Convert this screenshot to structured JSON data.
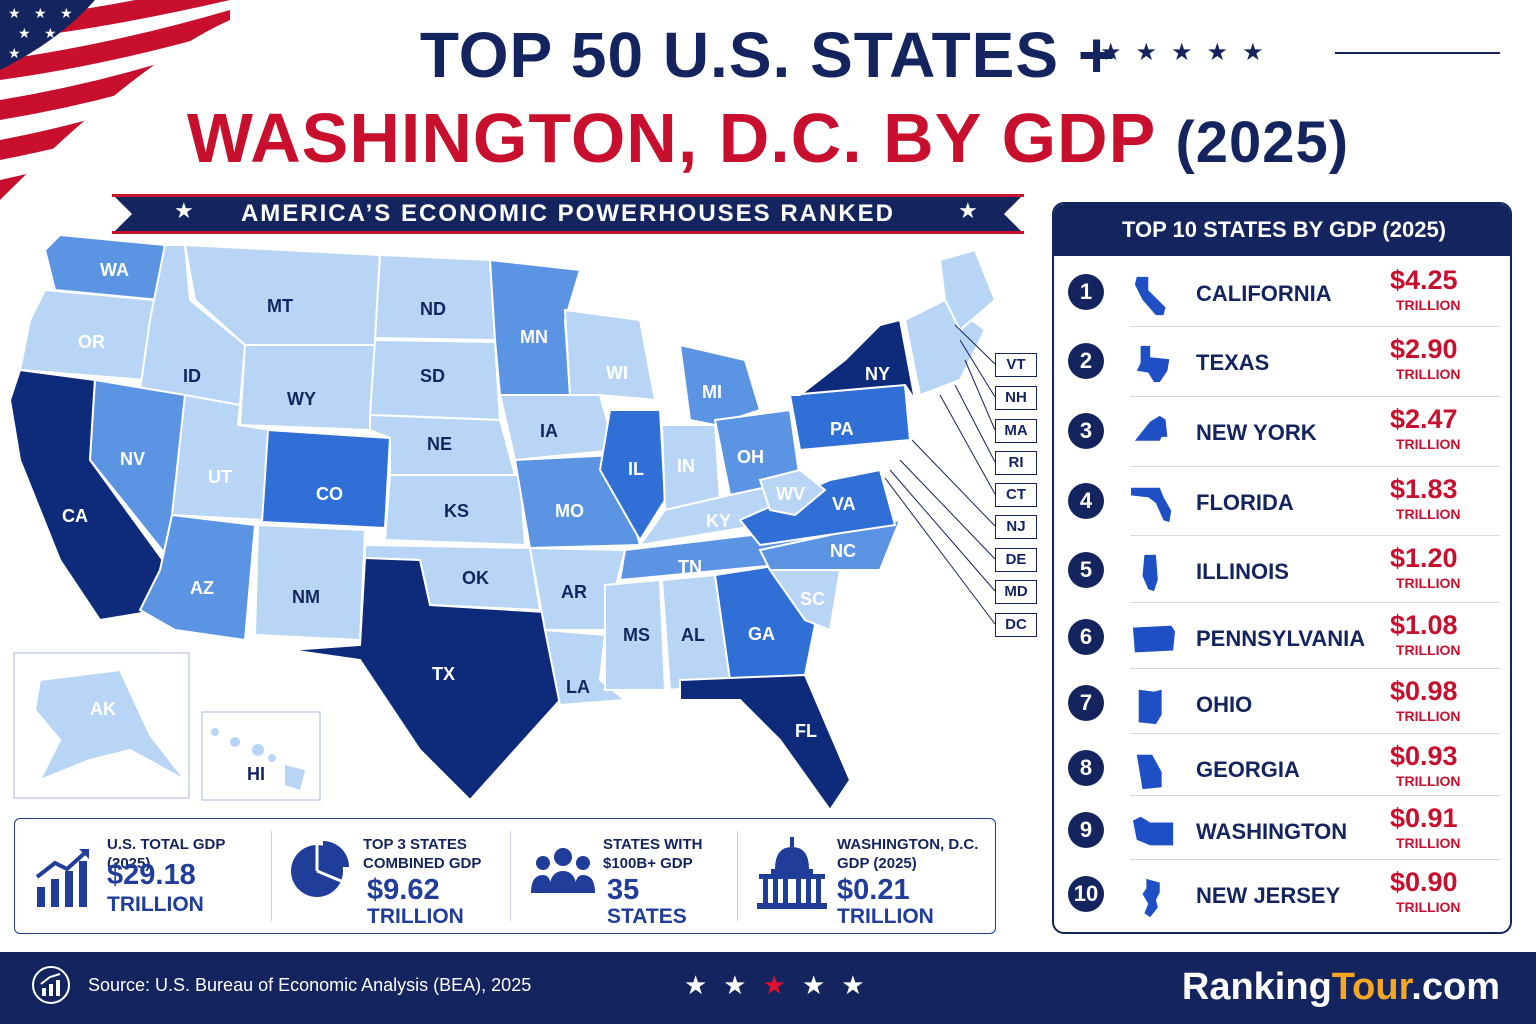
{
  "title": {
    "line1": "TOP 50 U.S. STATES +",
    "line2": "WASHINGTON, D.C. BY GDP",
    "year": "(2025)"
  },
  "subtitle": "AMERICA’S ECONOMIC POWERHOUSES RANKED",
  "colors": {
    "navy": "#14245e",
    "red": "#c8102e",
    "tier_top": "#0e2a7a",
    "tier_high": "#2f6fd6",
    "tier_mid": "#5b94e3",
    "tier_low": "#b8d5f5"
  },
  "map": {
    "states": {
      "WA": "WA",
      "OR": "OR",
      "CA": "CA",
      "ID": "ID",
      "NV": "NV",
      "MT": "MT",
      "WY": "WY",
      "UT": "UT",
      "AZ": "AZ",
      "CO": "CO",
      "NM": "NM",
      "ND": "ND",
      "SD": "SD",
      "NE": "NE",
      "KS": "KS",
      "OK": "OK",
      "TX": "TX",
      "MN": "MN",
      "IA": "IA",
      "MO": "MO",
      "AR": "AR",
      "LA": "LA",
      "WI": "WI",
      "IL": "IL",
      "MI": "MI",
      "IN": "IN",
      "OH": "OH",
      "KY": "KY",
      "TN": "TN",
      "MS": "MS",
      "AL": "AL",
      "GA": "GA",
      "FL": "FL",
      "SC": "SC",
      "NC": "NC",
      "VA": "VA",
      "WV": "WV",
      "PA": "PA",
      "NY": "NY",
      "AK": "AK",
      "HI": "HI"
    },
    "northeast_labels": [
      "VT",
      "NH",
      "MA",
      "RI",
      "CT",
      "NJ",
      "DE",
      "MD",
      "DC"
    ]
  },
  "stats": [
    {
      "label1": "U.S. TOTAL GDP (2025)",
      "label2": "",
      "value": "$29.18",
      "unit": "TRILLION",
      "icon": "bar-chart-up-icon"
    },
    {
      "label1": "TOP 3 STATES",
      "label2": "COMBINED GDP",
      "value": "$9.62",
      "unit": "TRILLION",
      "icon": "pie-chart-icon"
    },
    {
      "label1": "STATES WITH",
      "label2": "$100B+ GDP",
      "value": "35",
      "unit": "STATES",
      "icon": "people-group-icon"
    },
    {
      "label1": "WASHINGTON, D.C.",
      "label2": "GDP (2025)",
      "value": "$0.21",
      "unit": "TRILLION",
      "icon": "capitol-icon"
    }
  ],
  "top10": {
    "heading": "TOP 10 STATES BY GDP (2025)",
    "unit": "TRILLION",
    "rows": [
      {
        "rank": "1",
        "name": "CALIFORNIA",
        "gdp": "$4.25"
      },
      {
        "rank": "2",
        "name": "TEXAS",
        "gdp": "$2.90"
      },
      {
        "rank": "3",
        "name": "NEW YORK",
        "gdp": "$2.47"
      },
      {
        "rank": "4",
        "name": "FLORIDA",
        "gdp": "$1.83"
      },
      {
        "rank": "5",
        "name": "ILLINOIS",
        "gdp": "$1.20"
      },
      {
        "rank": "6",
        "name": "PENNSYLVANIA",
        "gdp": "$1.08"
      },
      {
        "rank": "7",
        "name": "OHIO",
        "gdp": "$0.98"
      },
      {
        "rank": "8",
        "name": "GEORGIA",
        "gdp": "$0.93"
      },
      {
        "rank": "9",
        "name": "WASHINGTON",
        "gdp": "$0.91"
      },
      {
        "rank": "10",
        "name": "NEW JERSEY",
        "gdp": "$0.90"
      }
    ]
  },
  "footer": {
    "source": "Source: U.S. Bureau of Economic Analysis (BEA), 2025",
    "brand_main": "Ranking",
    "brand_accent": "Tour",
    "brand_suffix": ".com"
  }
}
